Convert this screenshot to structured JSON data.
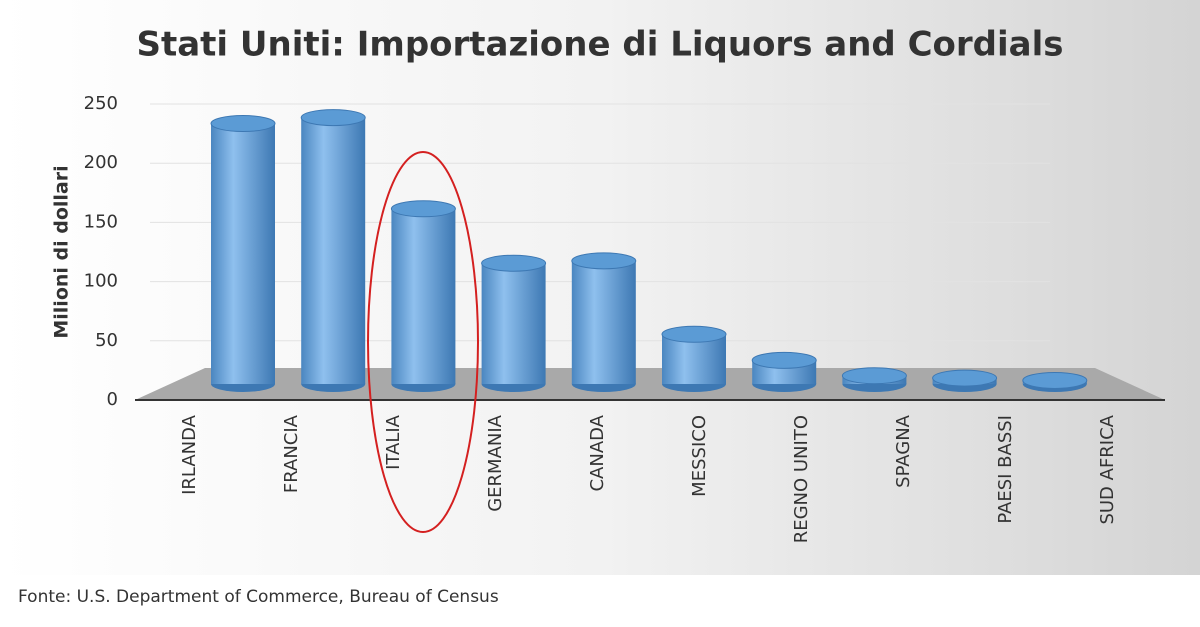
{
  "chart_data": {
    "type": "bar",
    "title": "Stati Uniti: Importazione di Liquors and Cordials",
    "y_label": "Milioni di dollari",
    "categories": [
      "IRLANDA",
      "FRANCIA",
      "ITALIA",
      "GERMANIA",
      "CANADA",
      "MESSICO",
      "REGNO UNITO",
      "SPAGNA",
      "PAESI BASSI",
      "SUD AFRICA"
    ],
    "values": [
      220,
      225,
      148,
      102,
      104,
      42,
      20,
      7,
      5,
      3
    ],
    "color": "#5b9bd5",
    "ylim": [
      0,
      250
    ],
    "yticks": [
      0,
      50,
      100,
      150,
      200,
      250
    ],
    "grid": true,
    "source": "Fonte: U.S. Department of Commerce, Bureau of Census"
  }
}
